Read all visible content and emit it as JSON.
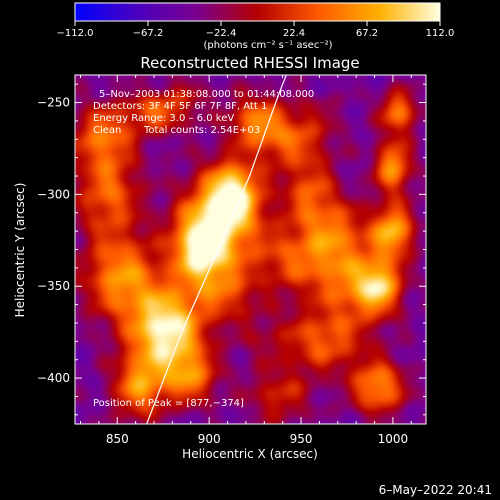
{
  "chart_data": {
    "type": "heatmap",
    "title": "Reconstructed RHESSI Image",
    "xlabel": "Heliocentric X (arcsec)",
    "ylabel": "Heliocentric Y (arcsec)",
    "xlim": [
      827,
      1018
    ],
    "ylim": [
      -425,
      -235
    ],
    "x_ticks": [
      850,
      900,
      950,
      1000
    ],
    "y_ticks": [
      -250,
      -300,
      -350,
      -400
    ],
    "colorbar": {
      "range": [
        -112.0,
        112.0
      ],
      "tick_labels": [
        "−112.0",
        "−67.2",
        "−22.4",
        "22.4",
        "67.2",
        "112.0"
      ],
      "tick_values": [
        -112.0,
        -67.2,
        -22.4,
        22.4,
        67.2,
        112.0
      ],
      "units": "(photons cm⁻² s⁻¹ asec⁻²)",
      "colors": [
        "#0000ff",
        "#4a00c0",
        "#7a0090",
        "#b50000",
        "#ff5a00",
        "#ffb000",
        "#ffffe0"
      ]
    },
    "annotations": {
      "time": "5–Nov–2003 01:38:08.000 to 01:44:08.000",
      "detectors": "Detectors: 3F 4F 5F 6F 7F 8F, Att 1",
      "energy": "Energy Range: 3.0 – 6.0 keV",
      "method": "Clean",
      "counts": "Total counts: 2.54E+03",
      "peak": "Position of Peak = [877,−374]"
    },
    "peak": [
      877,
      -374
    ],
    "limb": [
      [
        866,
        -425
      ],
      [
        885,
        -375
      ],
      [
        905,
        -330
      ],
      [
        922,
        -290
      ],
      [
        938,
        -245
      ],
      [
        942,
        -235
      ]
    ],
    "blobs": [
      {
        "x": 877,
        "y": -374,
        "sx": 14,
        "sy": 16,
        "v": 112
      },
      {
        "x": 895,
        "y": -330,
        "sx": 10,
        "sy": 14,
        "v": 72
      },
      {
        "x": 913,
        "y": -300,
        "sx": 10,
        "sy": 12,
        "v": 82
      },
      {
        "x": 905,
        "y": -318,
        "sx": 16,
        "sy": 20,
        "v": 55
      },
      {
        "x": 852,
        "y": -345,
        "sx": 14,
        "sy": 16,
        "v": 58
      },
      {
        "x": 842,
        "y": -268,
        "sx": 12,
        "sy": 12,
        "v": 40
      },
      {
        "x": 845,
        "y": -300,
        "sx": 12,
        "sy": 16,
        "v": 38
      },
      {
        "x": 862,
        "y": -405,
        "sx": 10,
        "sy": 12,
        "v": 52
      },
      {
        "x": 890,
        "y": -400,
        "sx": 10,
        "sy": 10,
        "v": 38
      },
      {
        "x": 945,
        "y": -270,
        "sx": 14,
        "sy": 12,
        "v": 32
      },
      {
        "x": 950,
        "y": -335,
        "sx": 18,
        "sy": 14,
        "v": 32
      },
      {
        "x": 980,
        "y": -350,
        "sx": 14,
        "sy": 14,
        "v": 34
      },
      {
        "x": 1000,
        "y": -320,
        "sx": 8,
        "sy": 10,
        "v": 75
      },
      {
        "x": 1000,
        "y": -285,
        "sx": 7,
        "sy": 10,
        "v": 62
      },
      {
        "x": 1003,
        "y": -255,
        "sx": 7,
        "sy": 8,
        "v": 50
      },
      {
        "x": 993,
        "y": -350,
        "sx": 8,
        "sy": 10,
        "v": 52
      },
      {
        "x": 992,
        "y": -405,
        "sx": 10,
        "sy": 10,
        "v": 60
      },
      {
        "x": 962,
        "y": -380,
        "sx": 16,
        "sy": 12,
        "v": 35
      },
      {
        "x": 955,
        "y": -300,
        "sx": 10,
        "sy": 12,
        "v": 28
      },
      {
        "x": 925,
        "y": -260,
        "sx": 10,
        "sy": 10,
        "v": 38
      },
      {
        "x": 872,
        "y": -255,
        "sx": 12,
        "sy": 8,
        "v": 34
      },
      {
        "x": 938,
        "y": -410,
        "sx": 12,
        "sy": 10,
        "v": 12
      },
      {
        "x": 910,
        "y": -355,
        "sx": 10,
        "sy": 10,
        "v": 10
      },
      {
        "x": 938,
        "y": -400,
        "sx": 10,
        "sy": 8,
        "v": -40
      },
      {
        "x": 928,
        "y": -378,
        "sx": 10,
        "sy": 10,
        "v": -20
      },
      {
        "x": 962,
        "y": -255,
        "sx": 10,
        "sy": 8,
        "v": -30
      },
      {
        "x": 890,
        "y": -245,
        "sx": 10,
        "sy": 8,
        "v": -18
      },
      {
        "x": 970,
        "y": -320,
        "sx": 12,
        "sy": 12,
        "v": 20
      }
    ]
  },
  "footer": {
    "date": "6–May–2022 20:41"
  }
}
